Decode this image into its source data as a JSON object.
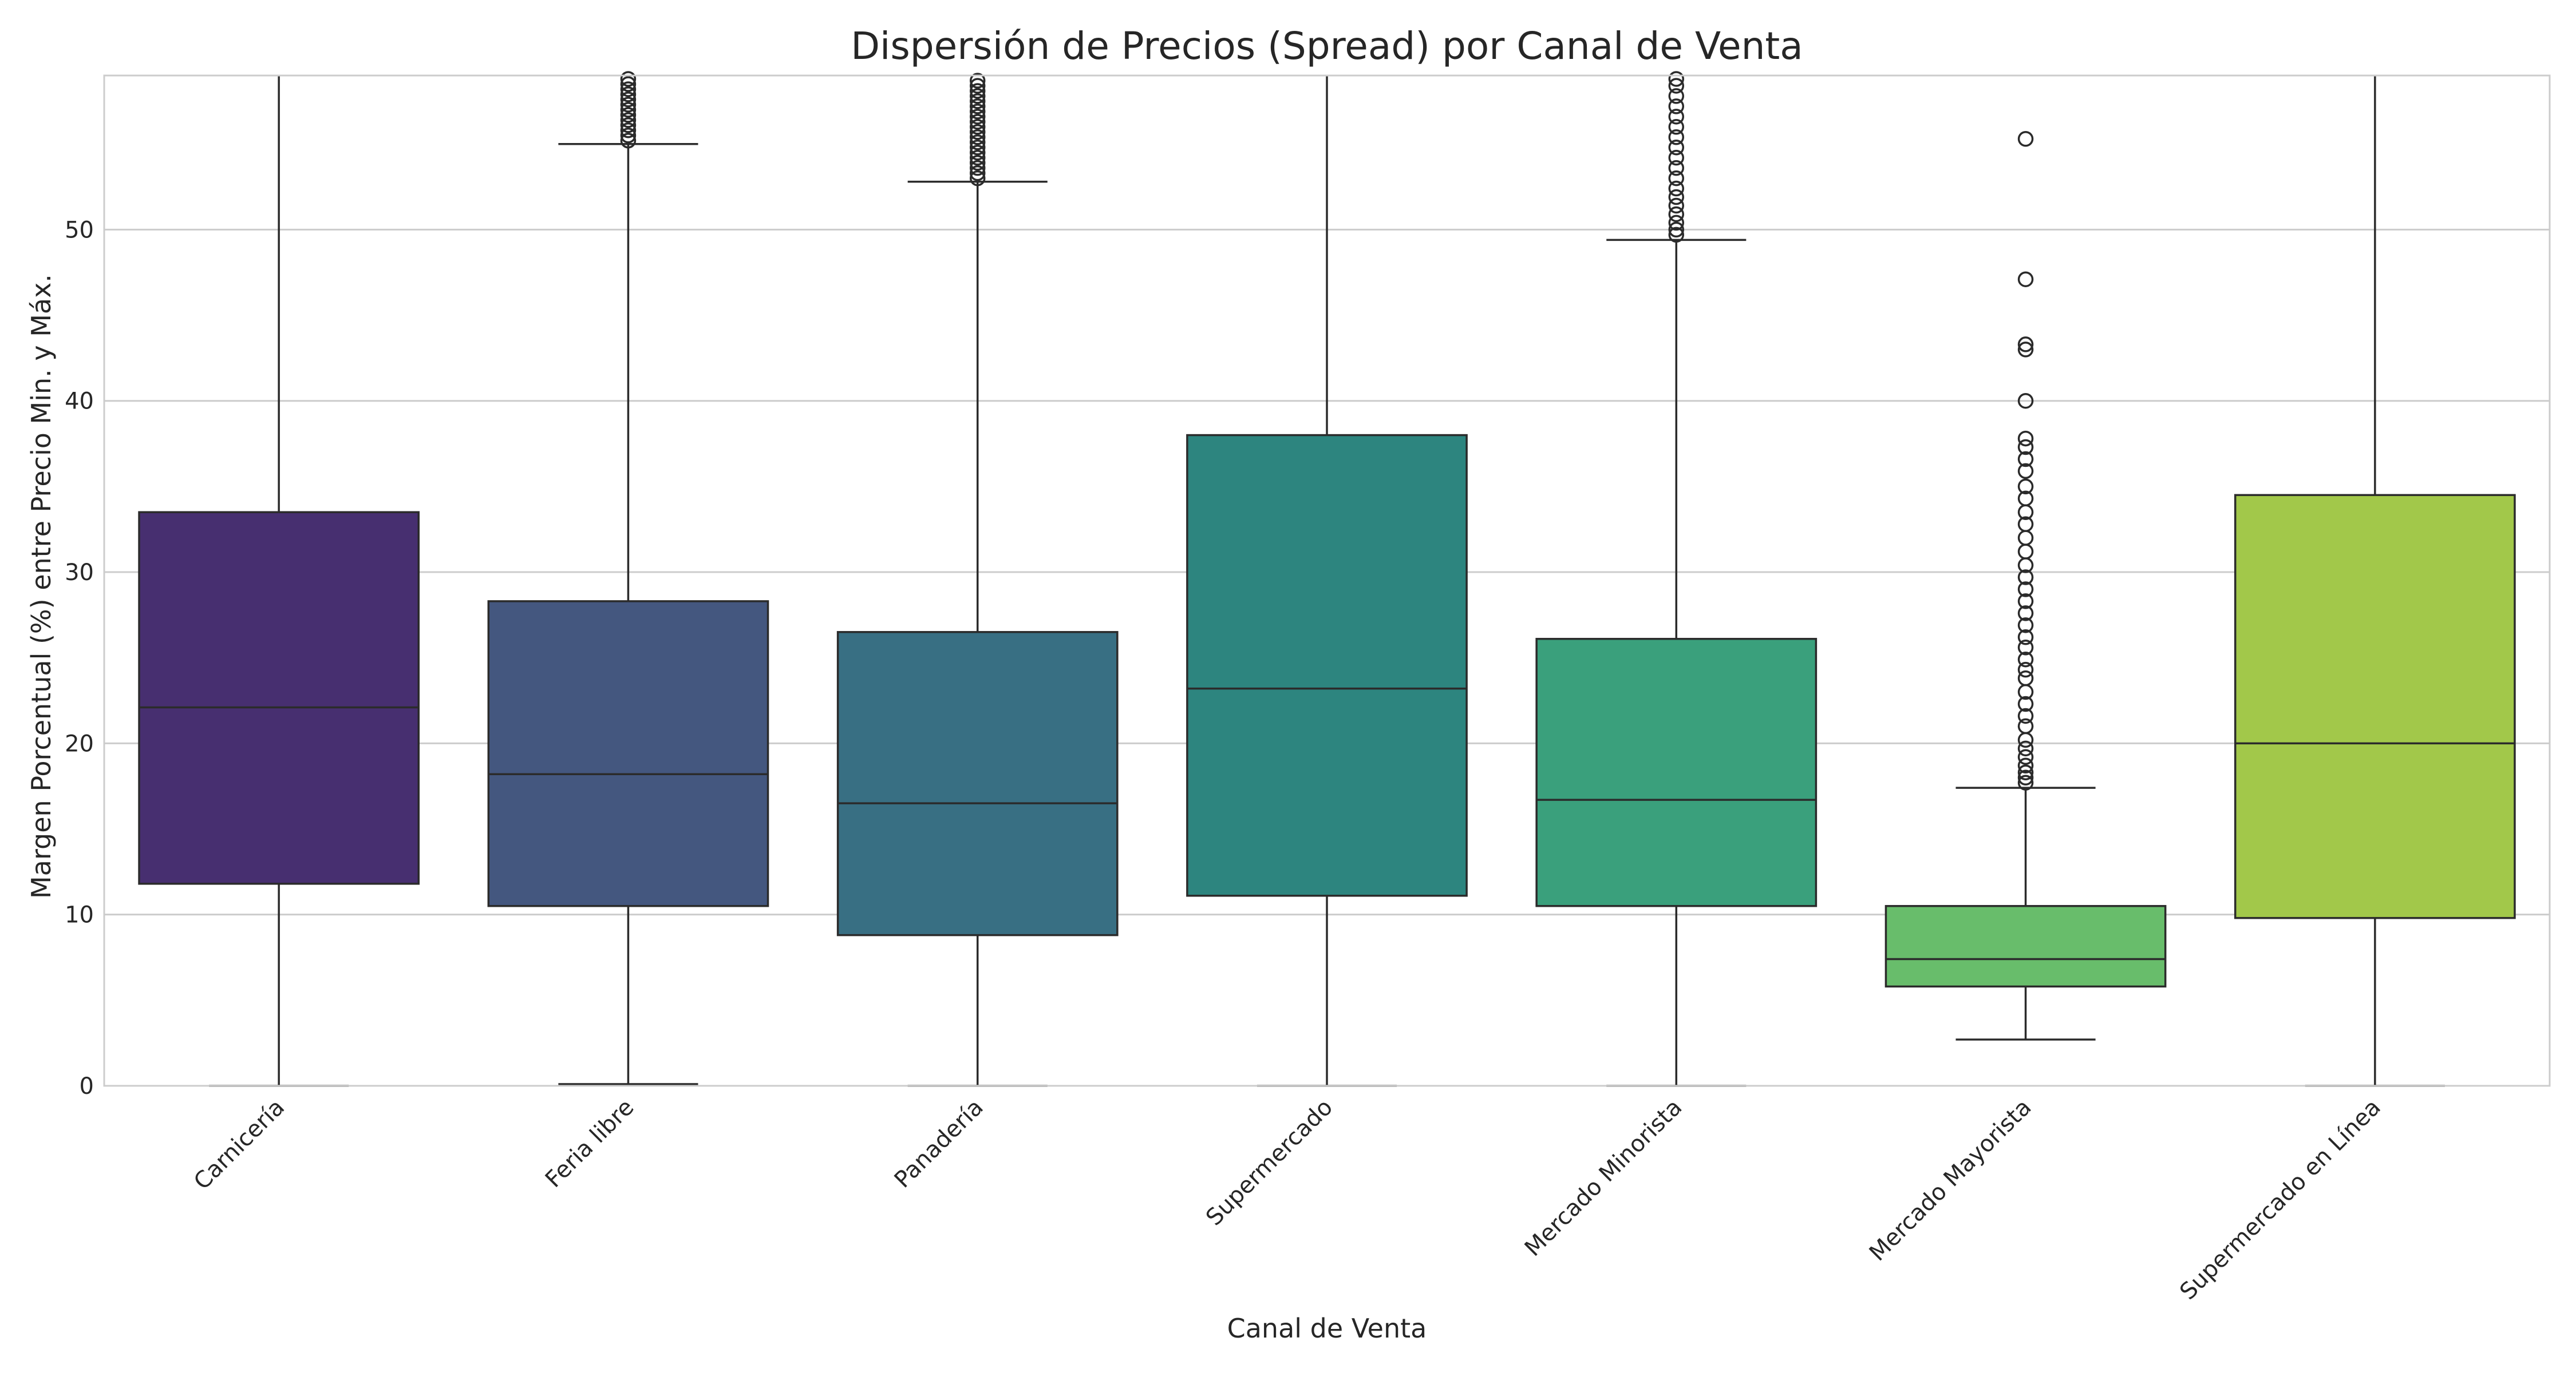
{
  "chart_data": {
    "type": "box",
    "title": "Dispersión de Precios (Spread) por Canal de Venta",
    "xlabel": "Canal de Venta",
    "ylabel": "Margen Porcentual (%) entre Precio Min. y Máx.",
    "ylim": [
      0,
      59
    ],
    "yticks": [
      0,
      10,
      20,
      30,
      40,
      50
    ],
    "grid": true,
    "legend": "none",
    "categories": [
      "Carnicería",
      "Feria libre",
      "Panadería",
      "Supermercado",
      "Mercado Minorista",
      "Mercado Mayorista",
      "Supermercado en Línea"
    ],
    "boxes": [
      {
        "category": "Carnicería",
        "color": "#472f70",
        "whisker_low": 0,
        "q1": 11.8,
        "median": 22.1,
        "q3": 33.5,
        "whisker_high": 59,
        "outliers": []
      },
      {
        "category": "Feria libre",
        "color": "#44577f",
        "whisker_low": 0.1,
        "q1": 10.5,
        "median": 18.2,
        "q3": 28.3,
        "whisker_high": 55,
        "outliers": [
          55.2,
          55.5,
          55.8,
          56.1,
          56.4,
          56.7,
          57.0,
          57.3,
          57.6,
          57.9,
          58.2,
          58.5,
          58.8
        ]
      },
      {
        "category": "Panadería",
        "color": "#386f83",
        "whisker_low": 0,
        "q1": 8.8,
        "median": 16.5,
        "q3": 26.5,
        "whisker_high": 52.8,
        "outliers": [
          53.0,
          53.3,
          53.6,
          53.9,
          54.2,
          54.5,
          54.8,
          55.1,
          55.4,
          55.7,
          56.0,
          56.3,
          56.6,
          56.9,
          57.2,
          57.5,
          57.8,
          58.1,
          58.4,
          58.7
        ]
      },
      {
        "category": "Supermercado",
        "color": "#2d857f",
        "whisker_low": 0,
        "q1": 11.1,
        "median": 23.2,
        "q3": 38.0,
        "whisker_high": 59,
        "outliers": []
      },
      {
        "category": "Mercado Minorista",
        "color": "#3aa07c",
        "whisker_low": 0,
        "q1": 10.5,
        "median": 16.7,
        "q3": 26.1,
        "whisker_high": 49.4,
        "outliers": [
          49.7,
          50.0,
          50.4,
          50.9,
          51.4,
          51.9,
          52.4,
          53.0,
          53.6,
          54.2,
          54.8,
          55.4,
          56.0,
          56.6,
          57.2,
          57.8,
          58.4,
          58.8
        ]
      },
      {
        "category": "Mercado Mayorista",
        "color": "#68bd6b",
        "whisker_low": 2.7,
        "q1": 5.8,
        "median": 7.4,
        "q3": 10.5,
        "whisker_high": 17.4,
        "outliers": [
          17.7,
          18.0,
          18.3,
          18.7,
          19.2,
          19.7,
          20.2,
          21.0,
          21.6,
          22.3,
          23.0,
          23.8,
          24.3,
          24.9,
          25.6,
          26.2,
          26.9,
          27.6,
          28.3,
          29.0,
          29.7,
          30.4,
          31.2,
          32.0,
          32.8,
          33.5,
          34.3,
          35.0,
          35.9,
          36.6,
          37.3,
          37.8,
          40.0,
          43.0,
          43.3,
          47.1,
          55.3
        ]
      },
      {
        "category": "Supermercado en Línea",
        "color": "#a2c84a",
        "whisker_low": 0,
        "q1": 9.8,
        "median": 20.0,
        "q3": 34.5,
        "whisker_high": 59,
        "outliers": []
      }
    ]
  }
}
